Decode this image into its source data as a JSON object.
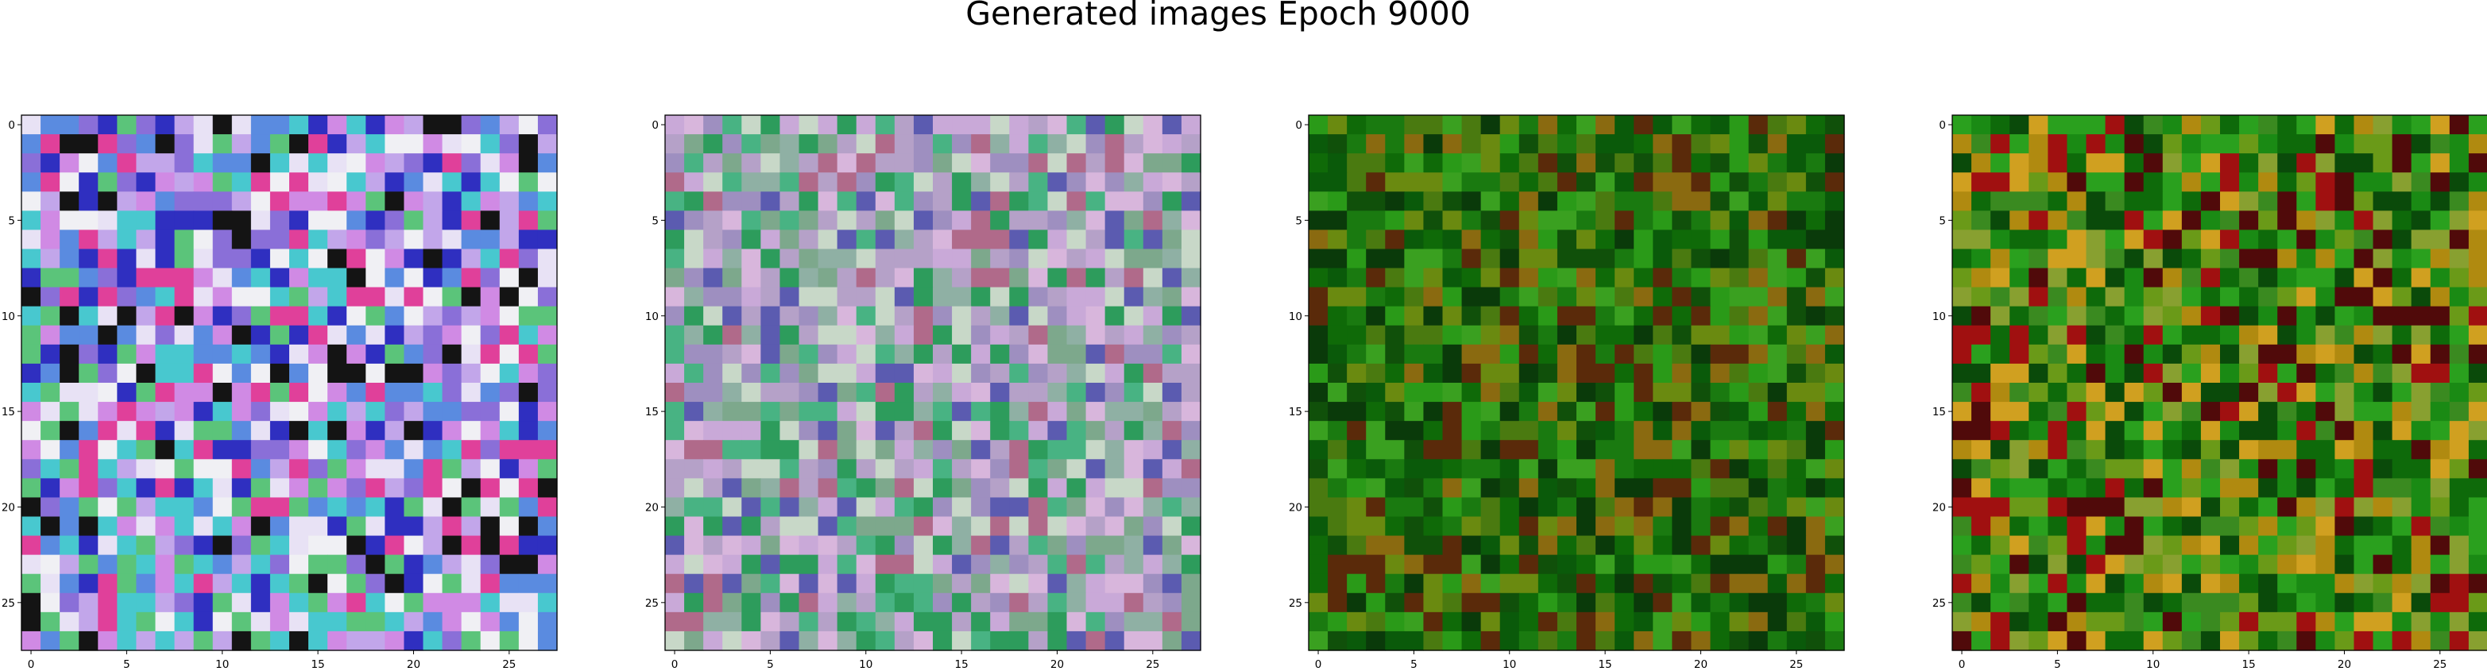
{
  "figure": {
    "title": "Generated images Epoch 9000"
  },
  "chart_data": [
    {
      "type": "heatmap",
      "image_size": 28,
      "xlim": [
        -0.5,
        27.5
      ],
      "ylim": [
        27.5,
        -0.5
      ],
      "x_ticks": [
        0,
        5,
        10,
        15,
        20,
        25
      ],
      "y_ticks": [
        0,
        5,
        10,
        15,
        20,
        25
      ],
      "palette": [
        "#8a6fd8",
        "#c2a6ea",
        "#e8e2f5",
        "#5a8be0",
        "#d08ae4",
        "#48c8cf",
        "#f0f0f4",
        "#2f2fc0",
        "#141414",
        "#5bc47a",
        "#e0409a"
      ],
      "seed": 11
    },
    {
      "type": "heatmap",
      "image_size": 28,
      "xlim": [
        -0.5,
        27.5
      ],
      "ylim": [
        27.5,
        -0.5
      ],
      "x_ticks": [
        0,
        5,
        10,
        15,
        20,
        25
      ],
      "y_ticks": [
        0,
        5,
        10,
        15,
        20,
        25
      ],
      "palette": [
        "#b5a1c8",
        "#8fb0a4",
        "#c9a9d8",
        "#7da88c",
        "#d8b6dc",
        "#48b383",
        "#9e8fc0",
        "#c8d8c8",
        "#5b5bb0",
        "#2d9c5c",
        "#b06a8a"
      ],
      "seed": 23
    },
    {
      "type": "heatmap",
      "image_size": 28,
      "xlim": [
        -0.5,
        27.5
      ],
      "ylim": [
        27.5,
        -0.5
      ],
      "x_ticks": [
        0,
        5,
        10,
        15,
        20,
        25
      ],
      "y_ticks": [
        0,
        5,
        10,
        15,
        20,
        25
      ],
      "palette": [
        "#1a7a10",
        "#0f6a08",
        "#2a9a18",
        "#4a7a10",
        "#0a5a0a",
        "#3aa020",
        "#6a8a10",
        "#0a3a0a",
        "#8a6a10",
        "#5a2a0a",
        "#10500a"
      ],
      "seed": 37
    },
    {
      "type": "heatmap",
      "image_size": 28,
      "xlim": [
        -0.5,
        27.5
      ],
      "ylim": [
        27.5,
        -0.5
      ],
      "x_ticks": [
        0,
        5,
        10,
        15,
        20,
        25
      ],
      "y_ticks": [
        0,
        5,
        10,
        15,
        20,
        25
      ],
      "palette": [
        "#1a8a14",
        "#0e6a0a",
        "#2aa01e",
        "#6a9a18",
        "#b08a10",
        "#a01010",
        "#0a4a0a",
        "#d0a020",
        "#500a0a",
        "#3a8a20",
        "#88a030"
      ],
      "seed": 53
    }
  ]
}
